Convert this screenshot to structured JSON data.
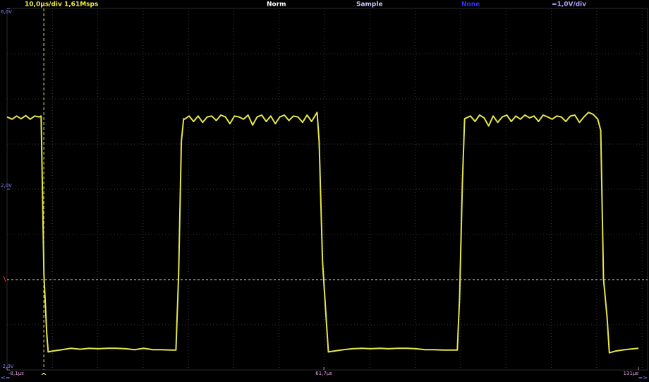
{
  "chart_data": {
    "type": "line",
    "status_bar": [
      {
        "text": "10,0µs/div  1,61Msps",
        "color": "#f0f040"
      },
      {
        "text": "Norm",
        "color": "#ffffff"
      },
      {
        "text": "Sample",
        "color": "#c8c8ff"
      },
      {
        "text": "None",
        "color": "#3030ff"
      },
      {
        "text": "=1,0V/div",
        "color": "#b0a0ff"
      }
    ],
    "xlim": [
      -8.1,
      131
    ],
    "ylim": [
      -2,
      6
    ],
    "xticks": [
      {
        "value": -8.1,
        "label": "-8,1µs"
      },
      {
        "value": 61.7,
        "label": "61,7µs"
      },
      {
        "value": 131,
        "label": "131µs"
      }
    ],
    "yticks": [
      {
        "value": 6,
        "label": "6,0V"
      },
      {
        "value": 2,
        "label": "2,0V"
      },
      {
        "value": -2,
        "label": "-2,0V"
      }
    ],
    "trigger": {
      "time": 0,
      "level": 0
    },
    "scroll_left": "<=",
    "scroll_right": "=>",
    "trigger_marker": "^",
    "series": [
      {
        "color": "#e6e64a",
        "x": [
          -8.1,
          -7,
          -6,
          -5,
          -4,
          -3,
          -2,
          -1,
          -0.6,
          0.03,
          0.65,
          0.96,
          2,
          4,
          6,
          8,
          10,
          12,
          14,
          16,
          18,
          20,
          22,
          24,
          26,
          28,
          29.1,
          29.7,
          30.3,
          30.8,
          31,
          32,
          33,
          34,
          35,
          36,
          37,
          38,
          39,
          40,
          41,
          42,
          43,
          44,
          45,
          46,
          47,
          48,
          49,
          50,
          51,
          52,
          53,
          54,
          55,
          56,
          57,
          58,
          59,
          60.2,
          60.65,
          61.4,
          62.2,
          62.7,
          64,
          66,
          68,
          70,
          72,
          74,
          76,
          78,
          80,
          82,
          84,
          86,
          88,
          90,
          91.1,
          91.6,
          92.2,
          92.7,
          94,
          95,
          96,
          97,
          98,
          99,
          100,
          101,
          102,
          103,
          104,
          105,
          106,
          107,
          108,
          109,
          110,
          111,
          112,
          113,
          114,
          115,
          116,
          117,
          118,
          119,
          120,
          121,
          122.05,
          122.7,
          123.3,
          124.1,
          124.6,
          126,
          128,
          130,
          131
        ],
        "values": [
          3.6,
          3.55,
          3.62,
          3.56,
          3.63,
          3.55,
          3.62,
          3.6,
          3.62,
          0.1,
          -1.2,
          -1.6,
          -1.58,
          -1.55,
          -1.52,
          -1.54,
          -1.52,
          -1.53,
          -1.52,
          -1.52,
          -1.53,
          -1.55,
          -1.52,
          -1.55,
          -1.55,
          -1.56,
          -1.56,
          0.1,
          3.06,
          3.56,
          3.55,
          3.62,
          3.5,
          3.62,
          3.48,
          3.6,
          3.62,
          3.52,
          3.64,
          3.6,
          3.45,
          3.62,
          3.6,
          3.55,
          3.64,
          3.42,
          3.6,
          3.64,
          3.5,
          3.62,
          3.45,
          3.6,
          3.64,
          3.52,
          3.62,
          3.6,
          3.48,
          3.64,
          3.5,
          3.7,
          3.06,
          0.4,
          -0.84,
          -1.6,
          -1.58,
          -1.55,
          -1.53,
          -1.52,
          -1.53,
          -1.52,
          -1.53,
          -1.52,
          -1.52,
          -1.53,
          -1.55,
          -1.55,
          -1.56,
          -1.56,
          -1.56,
          -0.4,
          2.1,
          3.56,
          3.62,
          3.5,
          3.64,
          3.58,
          3.4,
          3.62,
          3.48,
          3.6,
          3.64,
          3.5,
          3.62,
          3.55,
          3.64,
          3.58,
          3.62,
          3.5,
          3.64,
          3.6,
          3.55,
          3.62,
          3.6,
          3.5,
          3.62,
          3.64,
          3.48,
          3.6,
          3.7,
          3.66,
          3.55,
          3.3,
          0.02,
          -0.84,
          -1.62,
          -1.58,
          -1.55,
          -1.53,
          -1.52
        ]
      }
    ]
  }
}
